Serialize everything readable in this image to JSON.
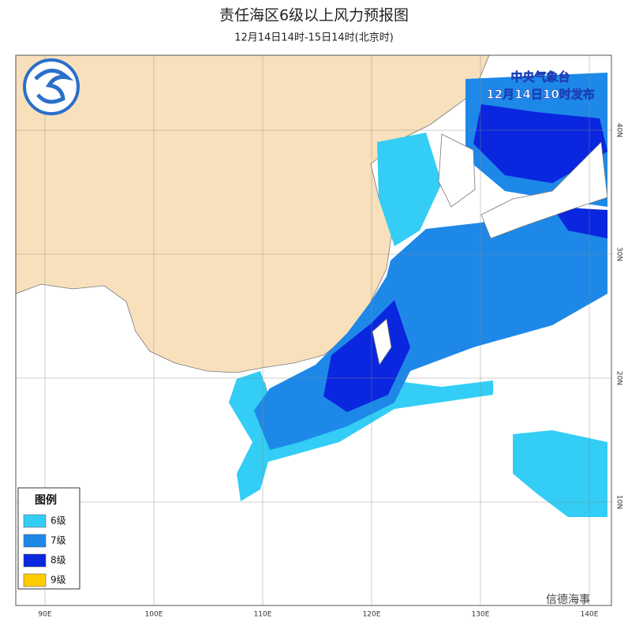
{
  "header": {
    "title": "责任海区6级以上风力预报图",
    "subtitle": "12月14日14时-15日14时(北京时)"
  },
  "issuer": {
    "name": "中央气象台",
    "time": "12月14日10时发布"
  },
  "legend": {
    "title": "图例",
    "items": [
      {
        "label": "6级",
        "color": "#33cdf5"
      },
      {
        "label": "7级",
        "color": "#1e88e8"
      },
      {
        "label": "8级",
        "color": "#0a26de"
      },
      {
        "label": "9级",
        "color": "#ffcc00"
      }
    ]
  },
  "axes": {
    "longitude": [
      "90E",
      "100E",
      "110E",
      "120E",
      "130E",
      "140E"
    ],
    "latitude": [
      "40N",
      "30N",
      "20N",
      "10N"
    ]
  },
  "watermark": "信德海事"
}
